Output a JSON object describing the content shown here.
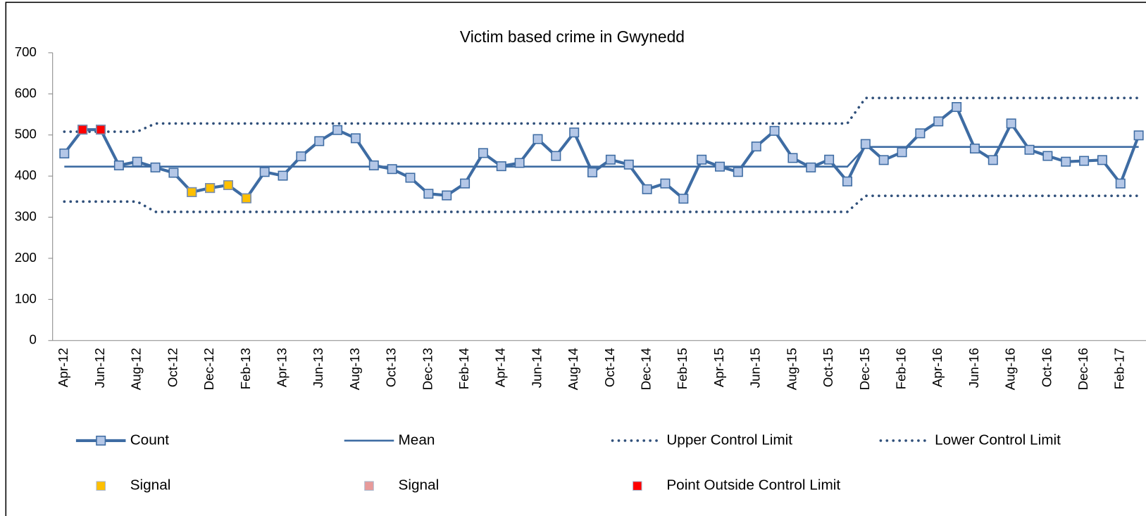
{
  "chart_data": {
    "type": "line",
    "title": "Victim based crime in Gwynedd",
    "categories": [
      "Apr-12",
      null,
      "Jun-12",
      null,
      "Aug-12",
      null,
      "Oct-12",
      null,
      "Dec-12",
      null,
      "Feb-13",
      null,
      "Apr-13",
      null,
      "Jun-13",
      null,
      "Aug-13",
      null,
      "Oct-13",
      null,
      "Dec-13",
      null,
      "Feb-14",
      null,
      "Apr-14",
      null,
      "Jun-14",
      null,
      "Aug-14",
      null,
      "Oct-14",
      null,
      "Dec-14",
      null,
      "Feb-15",
      null,
      "Apr-15",
      null,
      "Jun-15",
      null,
      "Aug-15",
      null,
      "Oct-15",
      null,
      "Dec-15",
      null,
      "Feb-16",
      null,
      "Apr-16",
      null,
      "Jun-16",
      null,
      "Aug-16",
      null,
      "Oct-16",
      null,
      "Dec-16",
      null,
      "Feb-17",
      null
    ],
    "ylim": [
      0,
      700
    ],
    "yticks": [
      0,
      100,
      200,
      300,
      400,
      500,
      600,
      700
    ],
    "series": [
      {
        "name": "Count",
        "color": "#3e6ca3",
        "style": "line-marker",
        "marker_color": "#b4c7e7",
        "values": [
          455,
          513,
          513,
          426,
          435,
          421,
          408,
          361,
          371,
          378,
          346,
          410,
          401,
          448,
          485,
          512,
          492,
          426,
          417,
          396,
          357,
          353,
          382,
          456,
          424,
          432,
          490,
          449,
          506,
          409,
          440,
          428,
          368,
          382,
          345,
          440,
          423,
          410,
          472,
          510,
          444,
          421,
          440,
          387,
          478,
          439,
          458,
          504,
          533,
          568,
          467,
          439,
          528,
          464,
          449,
          435,
          437,
          439,
          382,
          499
        ]
      },
      {
        "name": "Mean",
        "color": "#3e6ca3",
        "style": "line",
        "values": [
          423,
          423,
          423,
          423,
          423,
          423,
          423,
          423,
          423,
          423,
          423,
          423,
          423,
          423,
          423,
          423,
          423,
          423,
          423,
          423,
          423,
          423,
          423,
          423,
          423,
          423,
          423,
          423,
          423,
          423,
          423,
          423,
          423,
          423,
          423,
          423,
          423,
          423,
          423,
          423,
          423,
          423,
          423,
          423,
          471,
          471,
          471,
          471,
          471,
          471,
          471,
          471,
          471,
          471,
          471,
          471,
          471,
          471,
          471,
          471
        ]
      },
      {
        "name": "Upper Control Limit",
        "color": "#2f4f7a",
        "style": "dotted",
        "values": [
          508,
          508,
          508,
          508,
          508,
          528,
          528,
          528,
          528,
          528,
          528,
          528,
          528,
          528,
          528,
          528,
          528,
          528,
          528,
          528,
          528,
          528,
          528,
          528,
          528,
          528,
          528,
          528,
          528,
          528,
          528,
          528,
          528,
          528,
          528,
          528,
          528,
          528,
          528,
          528,
          528,
          528,
          528,
          528,
          590,
          590,
          590,
          590,
          590,
          590,
          590,
          590,
          590,
          590,
          590,
          590,
          590,
          590,
          590,
          590
        ]
      },
      {
        "name": "Lower Control Limit",
        "color": "#2f4f7a",
        "style": "dotted",
        "values": [
          338,
          338,
          338,
          338,
          338,
          313,
          313,
          313,
          313,
          313,
          313,
          313,
          313,
          313,
          313,
          313,
          313,
          313,
          313,
          313,
          313,
          313,
          313,
          313,
          313,
          313,
          313,
          313,
          313,
          313,
          313,
          313,
          313,
          313,
          313,
          313,
          313,
          313,
          313,
          313,
          313,
          313,
          313,
          313,
          352,
          352,
          352,
          352,
          352,
          352,
          352,
          352,
          352,
          352,
          352,
          352,
          352,
          352,
          352,
          352
        ]
      },
      {
        "name": "Signal",
        "color": "#ffc000",
        "style": "marker",
        "values": [
          null,
          null,
          null,
          null,
          null,
          null,
          null,
          361,
          371,
          378,
          346,
          null,
          null,
          null,
          null,
          null,
          null,
          null,
          null,
          null,
          null,
          null,
          null,
          null,
          null,
          null,
          null,
          null,
          null,
          null,
          null,
          null,
          null,
          null,
          null,
          null,
          null,
          null,
          null,
          null,
          null,
          null,
          null,
          null,
          null,
          null,
          null,
          null,
          null,
          null,
          null,
          null,
          null,
          null,
          null,
          null,
          null,
          null,
          null,
          null
        ]
      },
      {
        "name": "Signal",
        "color": "#e89a9a",
        "style": "marker",
        "values": [
          null,
          null,
          null,
          null,
          null,
          null,
          null,
          null,
          null,
          null,
          null,
          null,
          null,
          null,
          null,
          null,
          null,
          null,
          null,
          null,
          null,
          null,
          null,
          null,
          null,
          null,
          null,
          null,
          null,
          null,
          null,
          null,
          null,
          null,
          null,
          null,
          null,
          null,
          null,
          null,
          null,
          null,
          null,
          null,
          null,
          null,
          null,
          null,
          null,
          null,
          null,
          null,
          null,
          null,
          null,
          null,
          null,
          null,
          null,
          null
        ]
      },
      {
        "name": "Point Outside Control Limit",
        "color": "#ff0000",
        "style": "marker",
        "values": [
          null,
          513,
          513,
          null,
          null,
          null,
          null,
          null,
          null,
          null,
          null,
          null,
          null,
          null,
          null,
          null,
          null,
          null,
          null,
          null,
          null,
          null,
          null,
          null,
          null,
          null,
          null,
          null,
          null,
          null,
          null,
          null,
          null,
          null,
          null,
          null,
          null,
          null,
          null,
          null,
          null,
          null,
          null,
          null,
          null,
          null,
          null,
          null,
          null,
          null,
          null,
          null,
          null,
          null,
          null,
          null,
          null,
          null,
          null,
          null
        ]
      }
    ]
  }
}
